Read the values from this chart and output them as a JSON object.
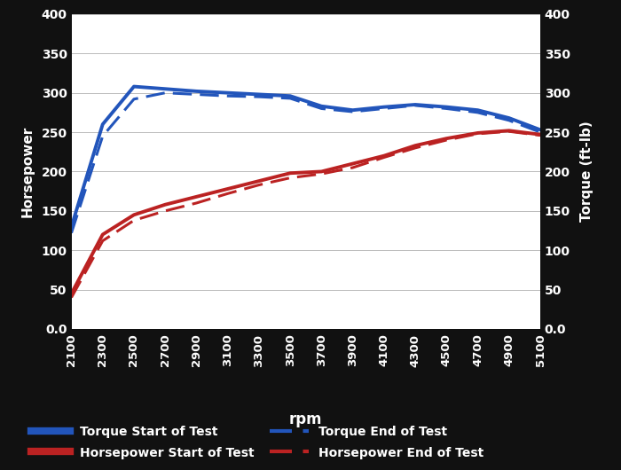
{
  "rpm": [
    2100,
    2300,
    2500,
    2700,
    2900,
    3100,
    3300,
    3500,
    3700,
    3900,
    4100,
    4300,
    4500,
    4700,
    4900,
    5100
  ],
  "torque_start": [
    130,
    260,
    308,
    305,
    302,
    300,
    298,
    296,
    283,
    278,
    282,
    285,
    282,
    278,
    268,
    253
  ],
  "torque_end": [
    122,
    245,
    292,
    300,
    298,
    296,
    295,
    293,
    280,
    276,
    280,
    284,
    280,
    275,
    265,
    250
  ],
  "hp_start": [
    45,
    120,
    145,
    158,
    168,
    178,
    188,
    198,
    200,
    210,
    220,
    233,
    242,
    249,
    252,
    247
  ],
  "hp_end": [
    40,
    112,
    138,
    150,
    160,
    172,
    183,
    192,
    197,
    205,
    218,
    230,
    240,
    248,
    251,
    246
  ],
  "torque_start_color": "#2255bb",
  "torque_end_color": "#2255bb",
  "hp_start_color": "#bb2222",
  "hp_end_color": "#bb2222",
  "bg_color": "#111111",
  "plot_bg_color": "#ffffff",
  "text_color": "#ffffff",
  "grid_color": "#bbbbbb",
  "xlabel": "rpm",
  "ylabel_left": "Horsepower",
  "ylabel_right": "Torque (ft-lb)",
  "ylim": [
    0,
    400
  ],
  "yticks": [
    0.0,
    50,
    100,
    150,
    200,
    250,
    300,
    350,
    400
  ],
  "legend_labels": [
    "Torque Start of Test",
    "Torque End of Test",
    "Horsepower Start of Test",
    "Horsepower End of Test"
  ]
}
